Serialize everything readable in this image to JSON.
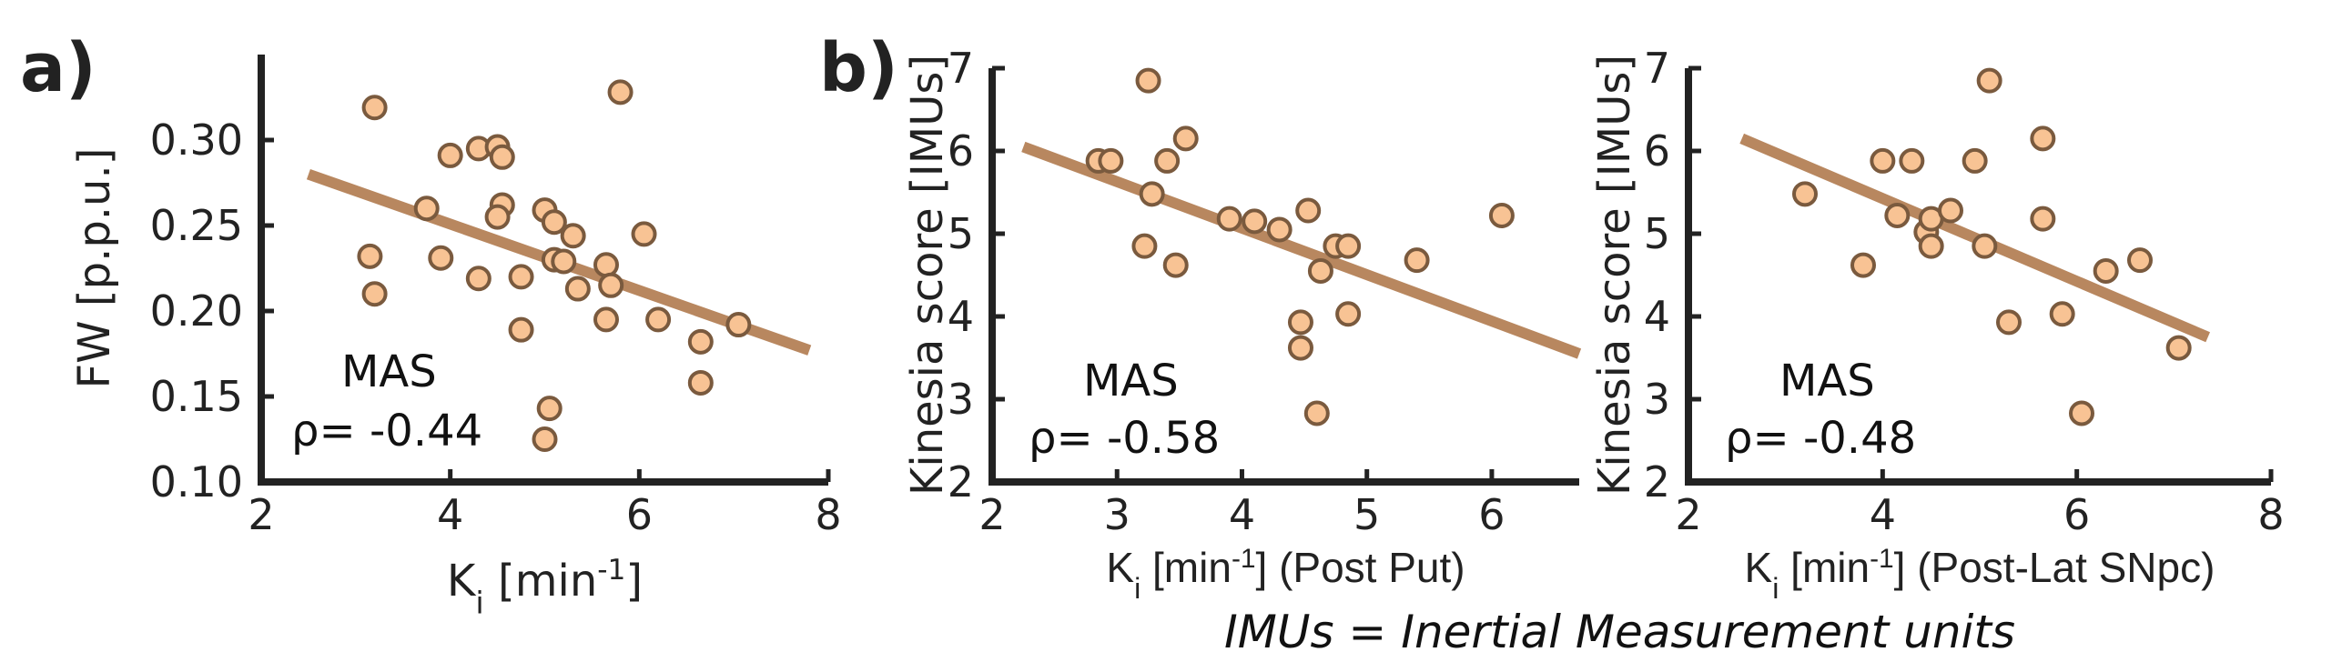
{
  "chart_data": [
    {
      "type": "scatter",
      "panel_label": "a)",
      "xlabel": {
        "main": "K",
        "sub": "i",
        "unit": "[min",
        "sup": "-1",
        "close": "]",
        "suffix": ""
      },
      "ylabel": "FW [p.p.u.]",
      "xlim": [
        2,
        8
      ],
      "ylim": [
        0.1,
        0.35
      ],
      "xticks": [
        2,
        4,
        6,
        8
      ],
      "xtick_labels": [
        "2",
        "4",
        "6",
        "8"
      ],
      "yticks": [
        0.1,
        0.15,
        0.2,
        0.25,
        0.3
      ],
      "ytick_labels": [
        "0.10",
        "0.15",
        "0.20",
        "0.25",
        "0.30"
      ],
      "annotation": {
        "label": "MAS",
        "rho_text": "ρ= -0.44"
      },
      "fit_line": {
        "x": [
          2.5,
          7.8
        ],
        "y": [
          0.28,
          0.177
        ]
      },
      "x": [
        3.2,
        3.15,
        3.2,
        3.75,
        3.9,
        4.0,
        4.3,
        4.3,
        4.5,
        4.55,
        4.5,
        4.55,
        4.75,
        4.75,
        5.0,
        5.0,
        5.05,
        5.1,
        5.1,
        5.2,
        5.3,
        5.35,
        5.65,
        5.7,
        5.65,
        5.8,
        6.05,
        6.2,
        6.65,
        6.65,
        7.05
      ],
      "y": [
        0.319,
        0.232,
        0.21,
        0.26,
        0.231,
        0.291,
        0.295,
        0.219,
        0.296,
        0.262,
        0.255,
        0.29,
        0.22,
        0.189,
        0.259,
        0.125,
        0.143,
        0.252,
        0.23,
        0.229,
        0.244,
        0.213,
        0.227,
        0.215,
        0.195,
        0.328,
        0.245,
        0.195,
        0.182,
        0.158,
        0.192
      ]
    },
    {
      "type": "scatter",
      "panel_label": "b)",
      "xlabel": {
        "main": "K",
        "sub": "i",
        "unit": "[min",
        "sup": "-1",
        "close": "]",
        "suffix": "(Post Put)"
      },
      "ylabel": "Kinesia score [IMUs]",
      "xlim": [
        2,
        6.7
      ],
      "ylim": [
        2,
        7
      ],
      "xticks": [
        2,
        3,
        4,
        5,
        6
      ],
      "xtick_labels": [
        "2",
        "3",
        "4",
        "5",
        "6"
      ],
      "yticks": [
        2,
        3,
        4,
        5,
        6,
        7
      ],
      "ytick_labels": [
        "2",
        "3",
        "4",
        "5",
        "6",
        "7"
      ],
      "annotation": {
        "label": "MAS",
        "rho_text": "ρ= -0.58"
      },
      "fit_line": {
        "x": [
          2.25,
          6.7
        ],
        "y": [
          6.05,
          3.55
        ]
      },
      "x": [
        2.85,
        2.95,
        3.25,
        3.28,
        3.22,
        3.4,
        3.47,
        3.55,
        3.9,
        4.1,
        4.3,
        4.47,
        4.53,
        4.47,
        4.6,
        4.63,
        4.75,
        4.85,
        4.85,
        5.4,
        6.08
      ],
      "y": [
        5.88,
        5.88,
        6.85,
        5.48,
        4.85,
        5.88,
        4.62,
        6.15,
        5.18,
        5.15,
        5.05,
        3.93,
        5.28,
        3.62,
        2.83,
        4.55,
        4.85,
        4.85,
        4.03,
        4.68,
        5.22
      ]
    },
    {
      "type": "scatter",
      "panel_label": "",
      "xlabel": {
        "main": "K",
        "sub": "i",
        "unit": "[min",
        "sup": "-1",
        "close": "]",
        "suffix": " (Post-Lat SNpc)"
      },
      "ylabel": "Kinesia score [IMUs]",
      "xlim": [
        2,
        8
      ],
      "ylim": [
        2,
        7
      ],
      "xticks": [
        2,
        4,
        6,
        8
      ],
      "xtick_labels": [
        "2",
        "4",
        "6",
        "8"
      ],
      "yticks": [
        2,
        3,
        4,
        5,
        6,
        7
      ],
      "ytick_labels": [
        "2",
        "3",
        "4",
        "5",
        "6",
        "7"
      ],
      "annotation": {
        "label": "MAS",
        "rho_text": "ρ= -0.48"
      },
      "fit_line": {
        "x": [
          2.55,
          7.35
        ],
        "y": [
          6.15,
          3.75
        ]
      },
      "x": [
        3.2,
        3.8,
        4.0,
        4.15,
        4.3,
        4.45,
        4.5,
        4.5,
        4.7,
        4.95,
        5.05,
        5.1,
        5.3,
        5.65,
        5.65,
        5.85,
        6.05,
        6.3,
        6.65,
        7.05
      ],
      "y": [
        5.48,
        4.62,
        5.88,
        5.22,
        5.88,
        5.02,
        5.18,
        4.85,
        5.28,
        5.88,
        4.85,
        6.85,
        3.93,
        6.15,
        5.18,
        4.03,
        2.83,
        4.55,
        4.68,
        3.62
      ]
    }
  ],
  "footnote": "IMUs = Inertial Measurement units",
  "colors": {
    "marker_fill": "#F8C394",
    "marker_edge": "#7A5A3E",
    "fit_line": "#B8875F",
    "axis": "#222222"
  }
}
